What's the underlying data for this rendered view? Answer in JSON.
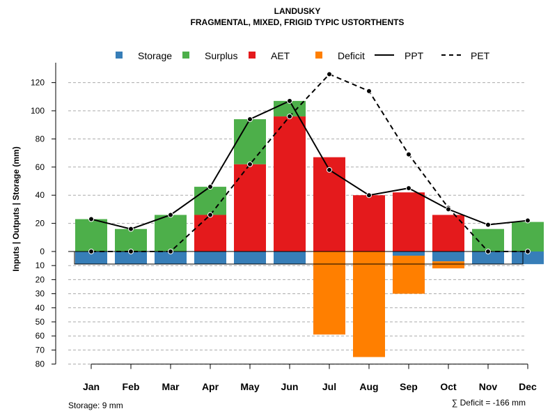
{
  "chart_data": {
    "type": "bar",
    "title": "LANDUSKY",
    "subtitle": "FRAGMENTAL, MIXED, FRIGID TYPIC USTORTHENTS",
    "ylabel": "Inputs | Outputs | Storage    (mm)",
    "categories": [
      "Jan",
      "Feb",
      "Mar",
      "Apr",
      "May",
      "Jun",
      "Jul",
      "Aug",
      "Sep",
      "Oct",
      "Nov",
      "Dec"
    ],
    "ylim_top": [
      0,
      130
    ],
    "ylim_bottom": [
      0,
      80
    ],
    "yticks_top": [
      0,
      20,
      40,
      60,
      80,
      100,
      120
    ],
    "yticks_bottom": [
      10,
      20,
      30,
      40,
      50,
      60,
      70,
      80
    ],
    "legend": [
      "Storage",
      "Surplus",
      "AET",
      "Deficit",
      "PPT",
      "PET"
    ],
    "colors": {
      "storage": "#377eb8",
      "surplus": "#4daf4a",
      "aet": "#e41a1c",
      "deficit": "#ff7f00",
      "grid": "#aaaaaa"
    },
    "series": [
      {
        "name": "AET",
        "values": [
          0,
          0,
          0,
          26,
          62,
          96,
          67,
          40,
          42,
          26,
          0,
          0
        ]
      },
      {
        "name": "Surplus",
        "values": [
          23,
          16,
          26,
          20,
          32,
          11,
          0,
          0,
          0,
          0,
          16,
          21
        ]
      },
      {
        "name": "Storage",
        "values": [
          9,
          9,
          9,
          9,
          9,
          9,
          0,
          0,
          3,
          7,
          9,
          9
        ]
      },
      {
        "name": "Deficit",
        "values": [
          0,
          0,
          0,
          0,
          0,
          0,
          59,
          75,
          27,
          5,
          0,
          0
        ]
      },
      {
        "name": "PPT",
        "values": [
          23,
          16,
          26,
          46,
          94,
          107,
          58,
          40,
          45,
          30,
          19,
          22
        ]
      },
      {
        "name": "PET",
        "values": [
          0,
          0,
          0,
          26,
          62,
          96,
          126,
          114,
          69,
          31,
          0,
          0
        ]
      }
    ],
    "storage_note": "Storage: 9 mm",
    "deficit_note": "∑ Deficit = -166 mm"
  }
}
